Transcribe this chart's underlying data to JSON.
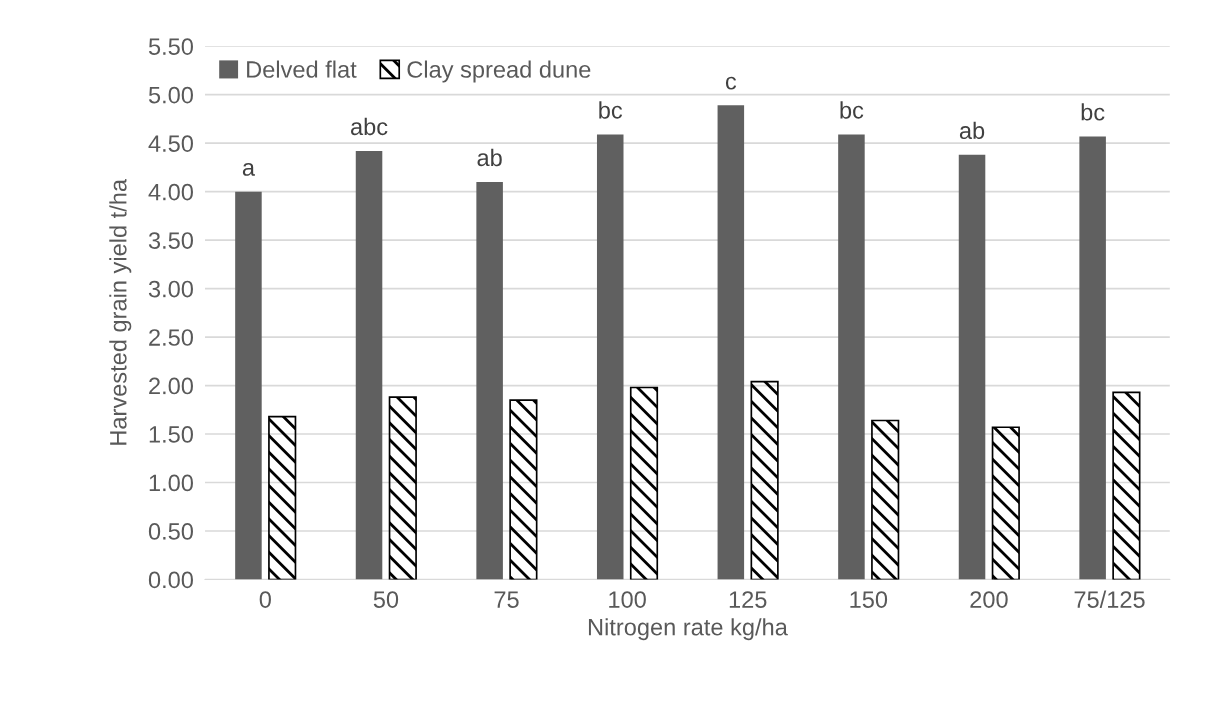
{
  "chart_data": {
    "type": "bar",
    "xlabel": "Nitrogen rate kg/ha",
    "ylabel": "Harvested grain yield t/ha",
    "categories": [
      "0",
      "50",
      "75",
      "100",
      "125",
      "150",
      "200",
      "75/125"
    ],
    "series": [
      {
        "name": "Delved flat",
        "color": "#606060",
        "values": [
          4.0,
          4.42,
          4.1,
          4.59,
          4.89,
          4.59,
          4.38,
          4.57
        ]
      },
      {
        "name": "Clay spread dune",
        "color": "#000000",
        "values": [
          1.68,
          1.88,
          1.85,
          1.98,
          2.04,
          1.64,
          1.57,
          1.93
        ]
      }
    ],
    "ylim": [
      0,
      5.5
    ],
    "yticks": [
      {
        "value": 0,
        "label": "0.00"
      },
      {
        "value": 0.5,
        "label": "0.50"
      },
      {
        "value": 1,
        "label": "1.00"
      },
      {
        "value": 1.5,
        "label": "1.50"
      },
      {
        "value": 2,
        "label": "2.00"
      },
      {
        "value": 2.5,
        "label": "2.50"
      },
      {
        "value": 3,
        "label": "3.00"
      },
      {
        "value": 3.5,
        "label": "3.50"
      },
      {
        "value": 4,
        "label": "4.00"
      },
      {
        "value": 4.5,
        "label": "4.50"
      },
      {
        "value": 5,
        "label": "5.00"
      },
      {
        "value": 5.5,
        "label": "5.50"
      }
    ],
    "annotations": [
      {
        "text": "a",
        "x": "0",
        "y": 4.0
      },
      {
        "text": "abc",
        "x": "50",
        "y": 4.42
      },
      {
        "text": "ab",
        "x": "75",
        "y": 4.1
      },
      {
        "text": "bc",
        "x": "100",
        "y": 4.59
      },
      {
        "text": "c",
        "x": "125",
        "y": 4.89
      },
      {
        "text": "bc",
        "x": "150",
        "y": 4.59
      },
      {
        "text": "ab",
        "x": "200",
        "y": 4.38
      },
      {
        "text": "bc",
        "x": "75/125",
        "y": 4.57
      }
    ],
    "grid": "y",
    "legend": "top left"
  }
}
